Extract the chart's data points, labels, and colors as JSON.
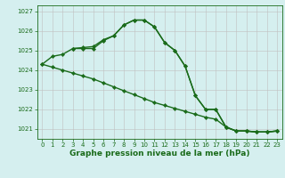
{
  "xlabel": "Graphe pression niveau de la mer (hPa)",
  "ylim": [
    1020.5,
    1027.3
  ],
  "xlim": [
    -0.5,
    23.5
  ],
  "yticks": [
    1021,
    1022,
    1023,
    1024,
    1025,
    1026,
    1027
  ],
  "xticks": [
    0,
    1,
    2,
    3,
    4,
    5,
    6,
    7,
    8,
    9,
    10,
    11,
    12,
    13,
    14,
    15,
    16,
    17,
    18,
    19,
    20,
    21,
    22,
    23
  ],
  "background_color": "#d5efef",
  "grid_color_major": "#c0c0c0",
  "grid_color_minor": "#e0e0e0",
  "line_color": "#1a6b1a",
  "line1_x": [
    0,
    1,
    2,
    3,
    4,
    5,
    6,
    7,
    8,
    9,
    10,
    11,
    12,
    13,
    14,
    15,
    16,
    17,
    18,
    19,
    20,
    21,
    22,
    23
  ],
  "line1_y": [
    1024.3,
    1024.7,
    1024.8,
    1025.1,
    1025.1,
    1025.1,
    1025.5,
    1025.75,
    1026.3,
    1026.55,
    1026.55,
    1026.2,
    1025.4,
    1025.0,
    1024.2,
    1022.7,
    1022.0,
    1022.0,
    1021.1,
    1020.9,
    1020.9,
    1020.85,
    1020.85,
    1020.9
  ],
  "line2_x": [
    0,
    1,
    2,
    3,
    4,
    5,
    6,
    7,
    8,
    9,
    10,
    11,
    12,
    13,
    14,
    15,
    16,
    17,
    18,
    19,
    20,
    21,
    22,
    23
  ],
  "line2_y": [
    1024.3,
    1024.15,
    1024.0,
    1023.85,
    1023.7,
    1023.55,
    1023.35,
    1023.15,
    1022.95,
    1022.75,
    1022.55,
    1022.35,
    1022.2,
    1022.05,
    1021.9,
    1021.75,
    1021.6,
    1021.5,
    1021.1,
    1020.9,
    1020.9,
    1020.85,
    1020.85,
    1020.9
  ],
  "line3_x": [
    3,
    4,
    5,
    6,
    7,
    8,
    9,
    10,
    11,
    12,
    13,
    14,
    15,
    16,
    17,
    18,
    19,
    20,
    21,
    22,
    23
  ],
  "line3_y": [
    1025.1,
    1025.15,
    1025.2,
    1025.55,
    1025.75,
    1026.3,
    1026.55,
    1026.55,
    1026.2,
    1025.4,
    1025.0,
    1024.2,
    1022.7,
    1022.0,
    1022.0,
    1021.1,
    1020.9,
    1020.9,
    1020.85,
    1020.85,
    1020.9
  ],
  "marker": "D",
  "markersize": 2.2,
  "linewidth": 1.0,
  "tick_fontsize": 5.0,
  "xlabel_fontsize": 6.5
}
